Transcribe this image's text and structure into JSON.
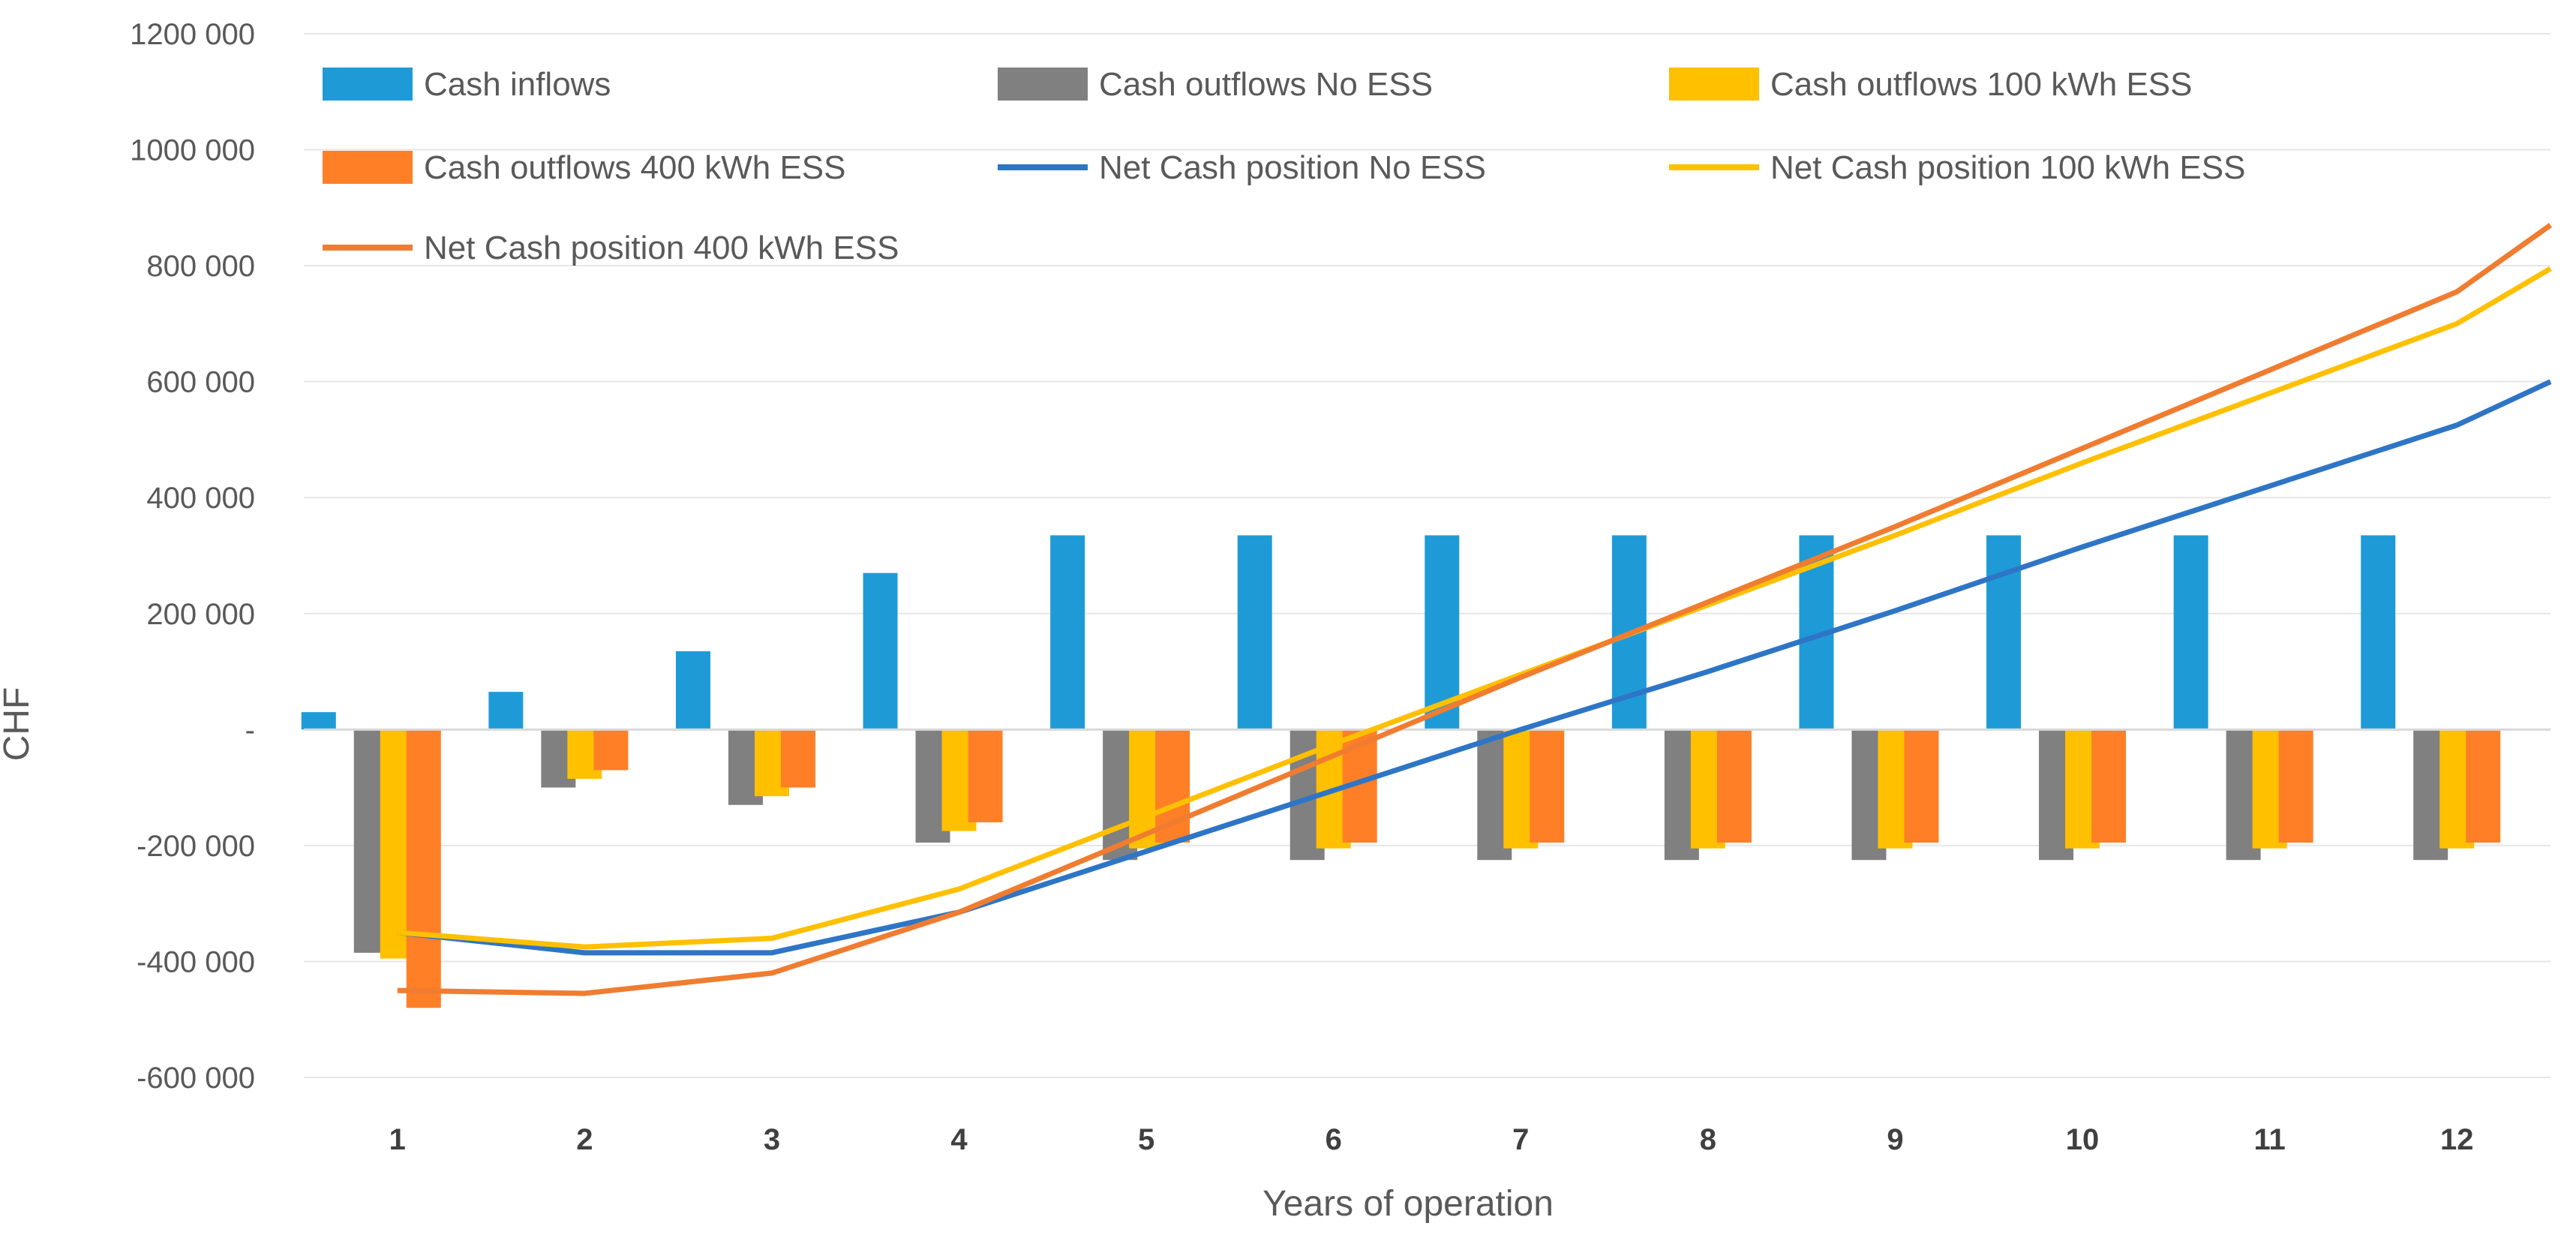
{
  "chart_data": {
    "type": "bar",
    "title": "",
    "xlabel": "Years of operation",
    "ylabel": "CHF",
    "ylim": [
      -600000,
      1200000
    ],
    "y_ticks": [
      1200000,
      1000000,
      800000,
      600000,
      400000,
      200000,
      0,
      -200000,
      -400000,
      -600000
    ],
    "y_tick_labels": [
      "1200 000",
      "1000 000",
      "800 000",
      "600 000",
      "400 000",
      "200 000",
      "-",
      "-200 000",
      "-400 000",
      "-600 000"
    ],
    "categories": [
      "1",
      "2",
      "3",
      "4",
      "5",
      "6",
      "7",
      "8",
      "9",
      "10",
      "11",
      "12"
    ],
    "legend_position": "top-left",
    "bar_series": [
      {
        "name": "Cash inflows",
        "color": "#1e9bd7",
        "values": [
          30000,
          65000,
          135000,
          270000,
          335000,
          335000,
          335000,
          335000,
          335000,
          335000,
          335000,
          335000
        ]
      },
      {
        "name": "Cash outflows No ESS",
        "color": "#808080",
        "values": [
          -385000,
          -100000,
          -130000,
          -195000,
          -225000,
          -225000,
          -225000,
          -225000,
          -225000,
          -225000,
          -225000,
          -225000
        ]
      },
      {
        "name": "Cash outflows 100 kWh ESS",
        "color": "#ffc000",
        "values": [
          -395000,
          -85000,
          -115000,
          -175000,
          -205000,
          -205000,
          -205000,
          -205000,
          -205000,
          -205000,
          -205000,
          -205000
        ]
      },
      {
        "name": "Cash outflows 400 kWh ESS",
        "color": "#ff7f27",
        "values": [
          -480000,
          -70000,
          -100000,
          -160000,
          -195000,
          -195000,
          -195000,
          -195000,
          -195000,
          -195000,
          -195000,
          -195000
        ]
      }
    ],
    "line_series": [
      {
        "name": "Net Cash position No ESS",
        "color": "#2e75c6",
        "values": [
          -350000,
          -385000,
          -385000,
          -315000,
          -210000,
          -105000,
          0,
          100000,
          205000,
          315000,
          420000,
          525000
        ],
        "end_value": 600000
      },
      {
        "name": "Net Cash position 100 kWh ESS",
        "color": "#ffc000",
        "values": [
          -350000,
          -375000,
          -360000,
          -275000,
          -150000,
          -25000,
          95000,
          215000,
          335000,
          460000,
          580000,
          700000
        ],
        "end_value": 795000
      },
      {
        "name": "Net Cash position 400 kWh ESS",
        "color": "#f07c30",
        "values": [
          -450000,
          -455000,
          -420000,
          -315000,
          -180000,
          -45000,
          90000,
          220000,
          350000,
          485000,
          620000,
          755000
        ],
        "end_value": 870000
      }
    ]
  }
}
